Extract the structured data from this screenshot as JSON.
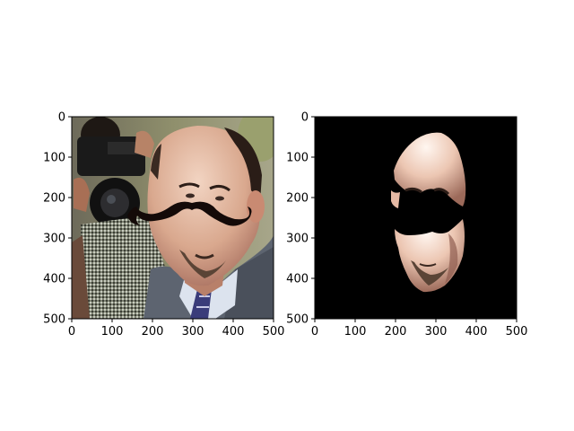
{
  "figure": {
    "panels": [
      {
        "name": "left-panel",
        "content": "photo of a balding man in a suit with a black mustache overlay, camera operator in background",
        "x_ticks": [
          "0",
          "100",
          "200",
          "300",
          "400",
          "500"
        ],
        "y_ticks": [
          "0",
          "100",
          "200",
          "300",
          "400",
          "500"
        ],
        "x_range": [
          0,
          500
        ],
        "y_range": [
          0,
          500
        ]
      },
      {
        "name": "right-panel",
        "content": "segmentation mask of the face region on black background with mustache cut out",
        "x_ticks": [
          "0",
          "100",
          "200",
          "300",
          "400",
          "500"
        ],
        "y_ticks": [
          "0",
          "100",
          "200",
          "300",
          "400",
          "500"
        ],
        "x_range": [
          0,
          500
        ],
        "y_range": [
          0,
          500
        ]
      }
    ]
  },
  "colors": {
    "mask_background": "#000000",
    "skin": "#d9a88e",
    "mustache": "#140a08",
    "suit": "#5d6470",
    "shirt": "#dce3ee"
  }
}
